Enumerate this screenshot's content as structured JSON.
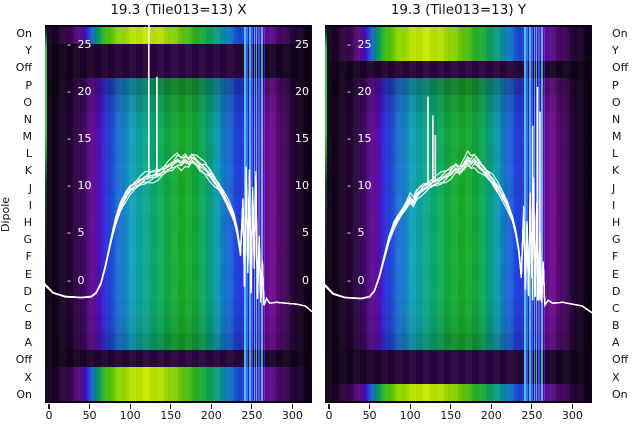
{
  "figure": {
    "ylabel": "Dipole",
    "row_labels": [
      "On",
      "Y",
      "Off",
      "P",
      "O",
      "N",
      "M",
      "L",
      "K",
      "J",
      "I",
      "H",
      "G",
      "F",
      "E",
      "D",
      "C",
      "B",
      "A",
      "Off",
      "X",
      "On"
    ],
    "inner_y_tick_values": [
      25,
      20,
      15,
      10,
      5,
      0
    ],
    "inner_y_ticks_left": [
      "- 25",
      "- 20",
      "- 15",
      "- 10",
      "- 5",
      "- 0"
    ],
    "inner_y_ticks_right": [
      "25",
      "20",
      "15",
      "10",
      "5",
      "0"
    ]
  },
  "colors": {
    "line": "#ffffff",
    "axis_text": "#111111",
    "panel_edge": "#16021c",
    "gradients": {
      "bright": [
        [
          0,
          "#0d0114"
        ],
        [
          4,
          "#1c0226"
        ],
        [
          9,
          "#38064c"
        ],
        [
          13,
          "#5c0a86"
        ],
        [
          15.5,
          "#3c14c8"
        ],
        [
          17.5,
          "#1460d2"
        ],
        [
          20,
          "#08a05a"
        ],
        [
          23,
          "#3cbe14"
        ],
        [
          27,
          "#84d400"
        ],
        [
          32,
          "#b4e400"
        ],
        [
          38,
          "#c8ea00"
        ],
        [
          44,
          "#b0e000"
        ],
        [
          50,
          "#78cc06"
        ],
        [
          56,
          "#2eb41e"
        ],
        [
          61,
          "#10a24e"
        ],
        [
          65,
          "#0a9a88"
        ],
        [
          69,
          "#0e7ac4"
        ],
        [
          73,
          "#1c42d4"
        ],
        [
          77,
          "#2428d2"
        ],
        [
          80.5,
          "#4814b4"
        ],
        [
          83,
          "#5e0d9a"
        ],
        [
          88,
          "#4a0668"
        ],
        [
          93,
          "#22043a"
        ],
        [
          100,
          "#0c0112"
        ]
      ],
      "body": [
        [
          0,
          "#090010"
        ],
        [
          6,
          "#16021e"
        ],
        [
          12,
          "#2a0540"
        ],
        [
          16,
          "#4c0874"
        ],
        [
          19,
          "#640a9c"
        ],
        [
          21.5,
          "#3418cc"
        ],
        [
          24,
          "#2040d4"
        ],
        [
          28,
          "#1a6ecc"
        ],
        [
          32,
          "#1298b8"
        ],
        [
          36,
          "#0ca096"
        ],
        [
          41,
          "#0ba26a"
        ],
        [
          47,
          "#12a438"
        ],
        [
          52,
          "#18a626"
        ],
        [
          57,
          "#10a03c"
        ],
        [
          61,
          "#089e6e"
        ],
        [
          65,
          "#0c90b0"
        ],
        [
          68.5,
          "#1866cc"
        ],
        [
          72,
          "#2040d8"
        ],
        [
          76,
          "#2628d4"
        ],
        [
          79.5,
          "#3a1ab8"
        ],
        [
          82,
          "#620e94"
        ],
        [
          86,
          "#680a84"
        ],
        [
          90,
          "#3c0656"
        ],
        [
          95,
          "#160220"
        ],
        [
          100,
          "#0a0012"
        ]
      ],
      "dark": [
        [
          0,
          "#0c0112"
        ],
        [
          12,
          "#160220"
        ],
        [
          19,
          "#20032e"
        ],
        [
          30,
          "#26043a"
        ],
        [
          50,
          "#2c0542"
        ],
        [
          70,
          "#26043a"
        ],
        [
          80,
          "#1e0330"
        ],
        [
          88,
          "#160222"
        ],
        [
          100,
          "#090010"
        ]
      ]
    },
    "body_brightness": [
      0.8,
      0.92,
      1.0,
      1.04,
      1.02,
      1.05,
      1.03,
      1.06,
      1.04,
      1.05,
      1.06,
      1.04,
      1.05,
      1.02,
      0.97,
      0.88
    ],
    "rfi_stripes": [
      {
        "x": 241.5,
        "w": 1.6,
        "c": "#27d6f0",
        "o": 0.85
      },
      {
        "x": 244.5,
        "w": 2.2,
        "c": "#2746ff",
        "o": 0.9
      },
      {
        "x": 247.5,
        "w": 1.4,
        "c": "#19e0ff",
        "o": 0.8
      },
      {
        "x": 250.5,
        "w": 2.0,
        "c": "#2b36f0",
        "o": 0.9
      },
      {
        "x": 253.5,
        "w": 1.4,
        "c": "#17d296",
        "o": 0.8
      },
      {
        "x": 256.0,
        "w": 1.4,
        "c": "#28c8ff",
        "o": 0.8
      },
      {
        "x": 259.0,
        "w": 2.2,
        "c": "#2b3cf0",
        "o": 0.9
      },
      {
        "x": 262.5,
        "w": 1.4,
        "c": "#1ad2e8",
        "o": 0.8
      },
      {
        "x": 266.0,
        "w": 1.2,
        "c": "#3a28d8",
        "o": 0.7
      }
    ],
    "edge_sliver": "linear-gradient(180deg, rgba(60,200,60,0) 0%, #2fca50 6%, #2fca50 28%, rgba(60,200,80,0.3) 42%, rgba(0,0,0,0) 65%)"
  },
  "chart_data": [
    {
      "type": "heatmap",
      "title": "19.3 (Tile013=13) X",
      "xlabel": "",
      "x_ticks": [
        0,
        50,
        100,
        150,
        200,
        250,
        300
      ],
      "x_range": [
        -5,
        324
      ],
      "y_ticks": [
        25,
        20,
        15,
        10,
        5,
        0
      ],
      "inner_ticks_right": true,
      "row_kinds": [
        "bright",
        "dark",
        "dark",
        "body",
        "body",
        "body",
        "body",
        "body",
        "body",
        "body",
        "body",
        "body",
        "body",
        "body",
        "body",
        "body",
        "body",
        "body",
        "body",
        "dark",
        "bright",
        "bright"
      ],
      "overlay_line": {
        "bundle_offsets": [
          -0.55,
          -0.35,
          -0.18,
          -0.05,
          0.1,
          0.28,
          0.5
        ],
        "seed": 0,
        "points": [
          [
            -5,
            -0.3
          ],
          [
            5,
            -1.2
          ],
          [
            20,
            -1.6
          ],
          [
            40,
            -1.7
          ],
          [
            52,
            -1.6
          ],
          [
            58,
            -1.2
          ],
          [
            64,
            -0.2
          ],
          [
            70,
            1.8
          ],
          [
            76,
            4.2
          ],
          [
            82,
            6.3
          ],
          [
            88,
            7.9
          ],
          [
            94,
            9.0
          ],
          [
            100,
            9.8
          ],
          [
            106,
            10.2
          ],
          [
            112,
            10.6
          ],
          [
            118,
            10.9
          ],
          [
            124,
            11.1
          ],
          [
            128,
            11.2
          ],
          [
            134,
            11.4
          ],
          [
            140,
            11.7
          ],
          [
            146,
            12.1
          ],
          [
            152,
            12.4
          ],
          [
            158,
            12.9
          ],
          [
            163,
            12.6
          ],
          [
            168,
            13.0
          ],
          [
            172,
            12.7
          ],
          [
            176,
            13.1
          ],
          [
            181,
            12.8
          ],
          [
            186,
            12.3
          ],
          [
            192,
            12.0
          ],
          [
            198,
            11.4
          ],
          [
            204,
            10.7
          ],
          [
            210,
            10.0
          ],
          [
            216,
            9.0
          ],
          [
            222,
            8.0
          ],
          [
            228,
            6.8
          ],
          [
            232,
            5.4
          ],
          [
            236,
            3.0
          ],
          [
            239,
            8.5
          ],
          [
            241,
            -0.5
          ],
          [
            243,
            11.8
          ],
          [
            245,
            1.0
          ],
          [
            247,
            11.5
          ],
          [
            249,
            -1.2
          ],
          [
            251,
            9.5
          ],
          [
            253,
            1.5
          ],
          [
            255,
            11.0
          ],
          [
            257,
            -1.8
          ],
          [
            259,
            4.5
          ],
          [
            261,
            -2.2
          ],
          [
            263,
            2.0
          ],
          [
            265,
            -2.5
          ],
          [
            268,
            -1.8
          ],
          [
            272,
            -2.3
          ],
          [
            280,
            -2.2
          ],
          [
            292,
            -2.3
          ],
          [
            305,
            -2.4
          ],
          [
            316,
            -2.6
          ],
          [
            324,
            -3.2
          ]
        ],
        "spikes": [
          [
            123,
            11.0,
            27.5
          ],
          [
            133,
            11.3,
            21.7
          ]
        ]
      }
    },
    {
      "type": "heatmap",
      "title": "19.3 (Tile013=13) Y",
      "xlabel": "",
      "x_ticks": [
        0,
        50,
        100,
        150,
        200,
        250,
        300
      ],
      "x_range": [
        -5,
        324
      ],
      "y_ticks": [
        25,
        20,
        15,
        10,
        5,
        0
      ],
      "inner_ticks_right": false,
      "row_kinds": [
        "bright",
        "bright",
        "dark",
        "body",
        "body",
        "body",
        "body",
        "body",
        "body",
        "body",
        "body",
        "body",
        "body",
        "body",
        "body",
        "body",
        "body",
        "body",
        "body",
        "dark",
        "dark",
        "bright"
      ],
      "overlay_line": {
        "bundle_offsets": [
          -0.55,
          -0.35,
          -0.18,
          -0.05,
          0.1,
          0.28,
          0.5
        ],
        "seed": 3,
        "points": [
          [
            -5,
            -0.4
          ],
          [
            5,
            -1.3
          ],
          [
            20,
            -1.7
          ],
          [
            40,
            -1.8
          ],
          [
            50,
            -1.6
          ],
          [
            56,
            -1.0
          ],
          [
            62,
            0.5
          ],
          [
            68,
            2.5
          ],
          [
            74,
            4.5
          ],
          [
            80,
            6.0
          ],
          [
            85,
            6.8
          ],
          [
            90,
            7.4
          ],
          [
            95,
            8.0
          ],
          [
            100,
            8.8
          ],
          [
            104,
            8.4
          ],
          [
            108,
            9.2
          ],
          [
            112,
            9.6
          ],
          [
            116,
            9.9
          ],
          [
            120,
            10.1
          ],
          [
            126,
            10.4
          ],
          [
            132,
            10.6
          ],
          [
            138,
            10.9
          ],
          [
            144,
            11.2
          ],
          [
            150,
            11.6
          ],
          [
            156,
            12.1
          ],
          [
            161,
            11.8
          ],
          [
            166,
            12.3
          ],
          [
            171,
            13.0
          ],
          [
            175,
            12.6
          ],
          [
            179,
            12.9
          ],
          [
            184,
            12.4
          ],
          [
            190,
            11.9
          ],
          [
            196,
            11.3
          ],
          [
            202,
            10.7
          ],
          [
            208,
            9.9
          ],
          [
            214,
            9.1
          ],
          [
            220,
            8.1
          ],
          [
            226,
            6.7
          ],
          [
            230,
            5.3
          ],
          [
            234,
            3.2
          ],
          [
            237,
            0.5
          ],
          [
            240,
            7.5
          ],
          [
            242,
            -0.8
          ],
          [
            244,
            6.0
          ],
          [
            246,
            -1.5
          ],
          [
            248,
            9.0
          ],
          [
            250,
            0.5
          ],
          [
            252,
            10.5
          ],
          [
            254,
            -1.6
          ],
          [
            256,
            8.0
          ],
          [
            258,
            -2.0
          ],
          [
            260,
            5.0
          ],
          [
            262,
            -2.2
          ],
          [
            264,
            2.0
          ],
          [
            266,
            -2.5
          ],
          [
            270,
            -2.0
          ],
          [
            276,
            -2.3
          ],
          [
            288,
            -2.2
          ],
          [
            300,
            -2.4
          ],
          [
            312,
            -2.6
          ],
          [
            324,
            -3.3
          ]
        ],
        "spikes": [
          [
            122,
            10.2,
            19.6
          ],
          [
            128,
            10.4,
            17.6
          ],
          [
            131,
            10.5,
            15.5
          ],
          [
            251,
            -2.0,
            16.5
          ],
          [
            257,
            -2.0,
            20.6
          ],
          [
            260,
            -2.0,
            18.0
          ]
        ]
      }
    }
  ]
}
